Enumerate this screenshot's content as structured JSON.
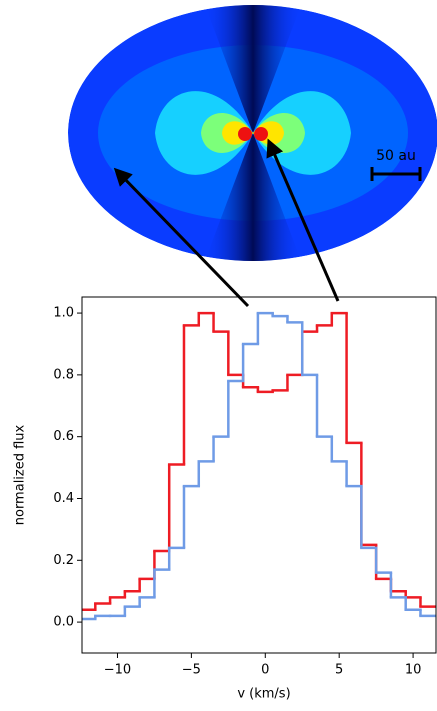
{
  "chart_data": {
    "type": "step",
    "x_label": "v (km/s)",
    "y_label": "normalized flux",
    "annotation": "50 au",
    "x": [
      -12,
      -11,
      -10,
      -9,
      -8,
      -7,
      -6,
      -5,
      -4,
      -3,
      -2,
      -1,
      0,
      1,
      2,
      3,
      4,
      5,
      6,
      7,
      8,
      9,
      10,
      11
    ],
    "series": [
      {
        "color": "#ee1c24",
        "values": [
          0.04,
          0.06,
          0.08,
          0.1,
          0.14,
          0.23,
          0.51,
          0.96,
          1.0,
          0.94,
          0.8,
          0.76,
          0.745,
          0.75,
          0.8,
          0.94,
          0.96,
          1.0,
          0.58,
          0.25,
          0.14,
          0.1,
          0.08,
          0.05
        ]
      },
      {
        "color": "#6f9be6",
        "values": [
          0.01,
          0.02,
          0.02,
          0.05,
          0.08,
          0.17,
          0.24,
          0.44,
          0.52,
          0.6,
          0.78,
          0.9,
          1.0,
          0.99,
          0.97,
          0.8,
          0.6,
          0.52,
          0.44,
          0.24,
          0.16,
          0.08,
          0.04,
          0.02
        ]
      }
    ],
    "xlim": [
      -12.4,
      11.55
    ],
    "ylim": [
      -0.1,
      1.052
    ],
    "xticks": [
      {
        "value": -10,
        "label": "−10"
      },
      {
        "value": -5,
        "label": "−5"
      },
      0,
      5,
      10
    ],
    "yticks": [
      {
        "value": 0,
        "label": "0.0"
      },
      0.2,
      0.4,
      0.6,
      0.8,
      {
        "value": 1,
        "label": "1.0"
      }
    ]
  }
}
